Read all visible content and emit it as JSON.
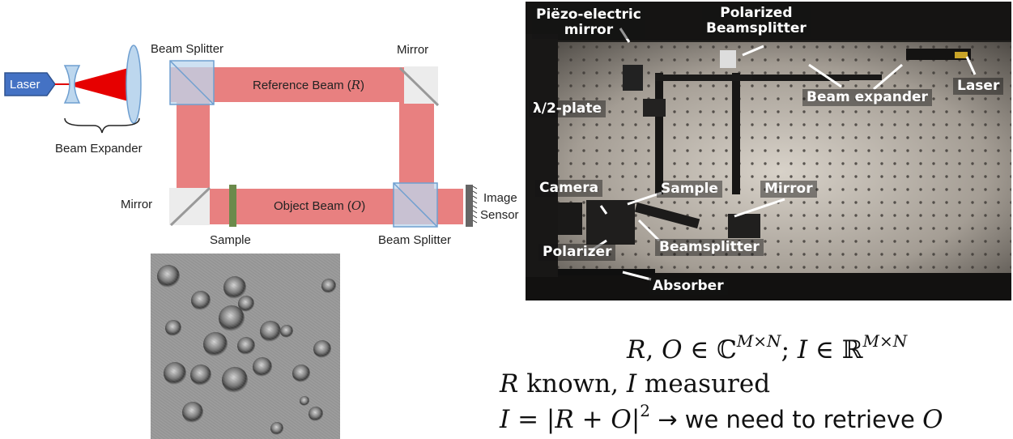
{
  "diagram": {
    "laser": "Laser",
    "beam_expander": "Beam Expander",
    "beam_splitter_top": "Beam Splitter",
    "mirror_top": "Mirror",
    "reference_beam_text": "Reference Beam (",
    "reference_beam_symbol": "R",
    "object_beam_text": "Object Beam (",
    "object_beam_symbol": "O",
    "close_paren": ")",
    "mirror_bottom": "Mirror",
    "sample": "Sample",
    "beam_splitter_bottom": "Beam Splitter",
    "image_sensor_line1": "Image",
    "image_sensor_line2": "Sensor",
    "colors": {
      "beam": "#e88080",
      "laser": "#4472c4",
      "optic": "#bdd7ee",
      "sample": "#6b8a4b"
    }
  },
  "photo": {
    "piezo_line1": "Piëzo-electric",
    "piezo_line2": "mirror",
    "polarized_line1": "Polarized",
    "polarized_line2": "Beamsplitter",
    "laser": "Laser",
    "beam_expander": "Beam expander",
    "half_wave_plate": "λ/2-plate",
    "camera": "Camera",
    "sample": "Sample",
    "mirror": "Mirror",
    "polarizer": "Polarizer",
    "beamsplitter": "Beamsplitter",
    "absorber": "Absorber"
  },
  "equations": {
    "line1_a": "R",
    "line1_b": ", ",
    "line1_c": "O",
    "line1_d": " ∈ ℂ",
    "line1_sup1": "M×N",
    "line1_e": ";  ",
    "line1_f": "I",
    "line1_g": " ∈ ℝ",
    "line1_sup2": "M×N",
    "line2_a": "R",
    "line2_b": " known, ",
    "line2_c": "I",
    "line2_d": " measured",
    "line3_a": "I",
    "line3_b": " = |",
    "line3_c": "R",
    "line3_d": " + ",
    "line3_e": "O",
    "line3_f": "|",
    "line3_sup": "2",
    "line3_g": " → we need to retrieve ",
    "line3_h": "O"
  }
}
